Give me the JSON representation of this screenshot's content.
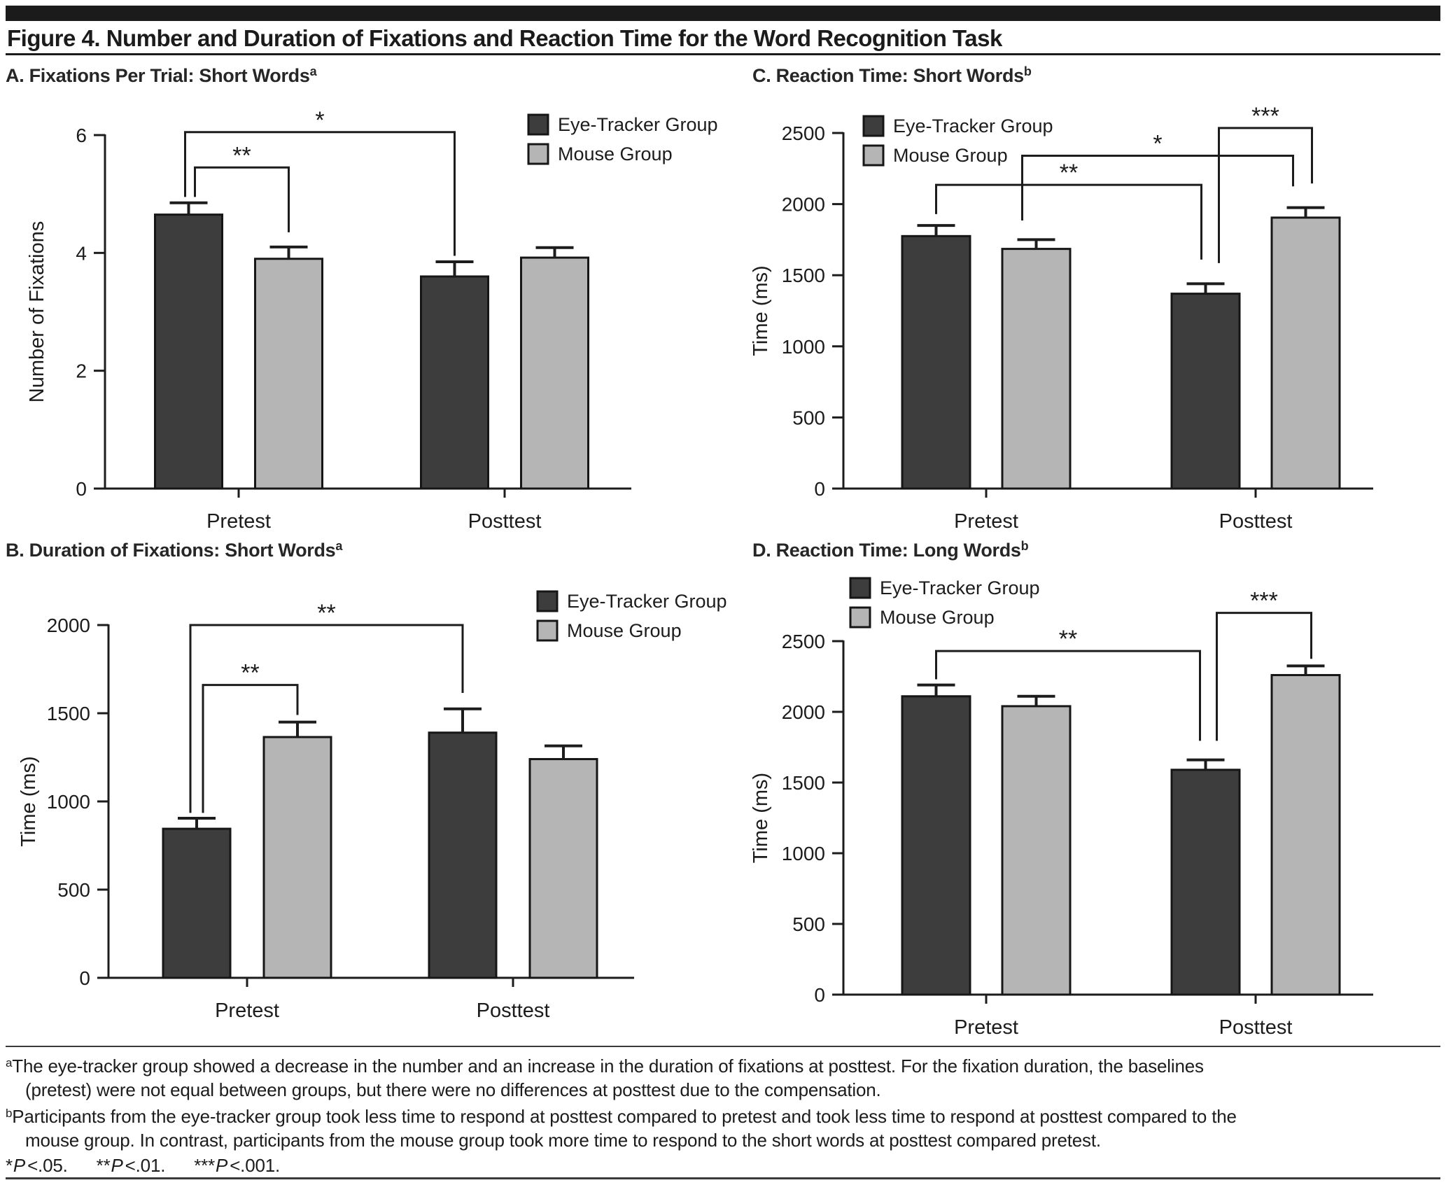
{
  "figure": {
    "title": "Figure 4. Number and Duration of Fixations and Reaction Time for the Word Recognition Task"
  },
  "colors": {
    "eye_tracker": "#3d3d3d",
    "mouse": "#b5b5b5",
    "axis": "#1c1c1c"
  },
  "legend": {
    "eye_tracker_label": "Eye-Tracker Group",
    "mouse_label": "Mouse Group"
  },
  "chart_data": [
    {
      "id": "A",
      "type": "bar",
      "title": "A. Fixations Per Trial: Short Words",
      "title_superscript": "a",
      "categories": [
        "Pretest",
        "Posttest"
      ],
      "series": [
        {
          "name": "Eye-Tracker Group",
          "color": "#3d3d3d",
          "values": [
            4.65,
            3.6
          ],
          "errors": [
            0.2,
            0.25
          ]
        },
        {
          "name": "Mouse Group",
          "color": "#b5b5b5",
          "values": [
            3.9,
            3.92
          ],
          "errors": [
            0.2,
            0.17
          ]
        }
      ],
      "ylabel": "Number of Fixations",
      "ylim": [
        0,
        6
      ],
      "yticks": [
        0,
        2,
        4,
        6
      ],
      "legend_position": "top-right",
      "brackets": [
        {
          "label": "**",
          "from": {
            "cat": 0,
            "series": 0
          },
          "to": {
            "cat": 0,
            "series": 1
          },
          "top": 5.45,
          "dropFrom": 4.95,
          "dropTo": 4.35,
          "dx1": 9,
          "dx2": 0
        },
        {
          "label": "*",
          "from": {
            "cat": 0,
            "series": 0
          },
          "to": {
            "cat": 1,
            "series": 0
          },
          "top": 6.05,
          "dropFrom": 4.95,
          "dropTo": 3.95,
          "dx1": -5,
          "dx2": 0
        }
      ]
    },
    {
      "id": "B",
      "type": "bar",
      "title": "B. Duration of Fixations: Short Words",
      "title_superscript": "a",
      "categories": [
        "Pretest",
        "Posttest"
      ],
      "series": [
        {
          "name": "Eye-Tracker Group",
          "color": "#3d3d3d",
          "values": [
            845,
            1390
          ],
          "errors": [
            60,
            135
          ]
        },
        {
          "name": "Mouse Group",
          "color": "#b5b5b5",
          "values": [
            1365,
            1240
          ],
          "errors": [
            85,
            75
          ]
        }
      ],
      "ylabel": "Time (ms)",
      "ylim": [
        0,
        2000
      ],
      "yticks": [
        0,
        500,
        1000,
        1500,
        2000
      ],
      "legend_position": "top-right",
      "brackets": [
        {
          "label": "**",
          "from": {
            "cat": 0,
            "series": 0
          },
          "to": {
            "cat": 0,
            "series": 1
          },
          "top": 1660,
          "dropFrom": 935,
          "dropTo": 1490,
          "dx1": 9,
          "dx2": 0
        },
        {
          "label": "**",
          "from": {
            "cat": 0,
            "series": 0
          },
          "to": {
            "cat": 1,
            "series": 0
          },
          "top": 2000,
          "dropFrom": 935,
          "dropTo": 1615,
          "dx1": -9,
          "dx2": 0
        }
      ]
    },
    {
      "id": "C",
      "type": "bar",
      "title": "C. Reaction Time: Short Words",
      "title_superscript": "b",
      "categories": [
        "Pretest",
        "Posttest"
      ],
      "series": [
        {
          "name": "Eye-Tracker Group",
          "color": "#3d3d3d",
          "values": [
            1775,
            1370
          ],
          "errors": [
            75,
            70
          ]
        },
        {
          "name": "Mouse Group",
          "color": "#b5b5b5",
          "values": [
            1685,
            1905
          ],
          "errors": [
            65,
            70
          ]
        }
      ],
      "ylabel": "Time (ms)",
      "ylim": [
        0,
        2500
      ],
      "yticks": [
        0,
        500,
        1000,
        1500,
        2000,
        2500
      ],
      "legend_position": "top-left",
      "brackets": [
        {
          "label": "**",
          "from": {
            "cat": 0,
            "series": 0
          },
          "to": {
            "cat": 1,
            "series": 0
          },
          "top": 2135,
          "dropFrom": 1930,
          "dropTo": 1610,
          "dx1": 0,
          "dx2": -6
        },
        {
          "label": "*",
          "from": {
            "cat": 0,
            "series": 1
          },
          "to": {
            "cat": 1,
            "series": 1
          },
          "top": 2340,
          "dropFrom": 1885,
          "dropTo": 2125,
          "dx1": -20,
          "dx2": -18
        },
        {
          "label": "***",
          "from": {
            "cat": 1,
            "series": 0
          },
          "to": {
            "cat": 1,
            "series": 1
          },
          "top": 2535,
          "dropFrom": 1585,
          "dropTo": 2145,
          "dx1": 19,
          "dx2": 9
        }
      ]
    },
    {
      "id": "D",
      "type": "bar",
      "title": "D. Reaction Time: Long Words",
      "title_superscript": "b",
      "categories": [
        "Pretest",
        "Posttest"
      ],
      "series": [
        {
          "name": "Eye-Tracker Group",
          "color": "#3d3d3d",
          "values": [
            2110,
            1590
          ],
          "errors": [
            80,
            70
          ]
        },
        {
          "name": "Mouse Group",
          "color": "#b5b5b5",
          "values": [
            2040,
            2260
          ],
          "errors": [
            70,
            65
          ]
        }
      ],
      "ylabel": "Time (ms)",
      "ylim": [
        0,
        2500
      ],
      "yticks": [
        0,
        500,
        1000,
        1500,
        2000,
        2500
      ],
      "legend_position": "top-left",
      "brackets": [
        {
          "label": "**",
          "from": {
            "cat": 0,
            "series": 0
          },
          "to": {
            "cat": 1,
            "series": 0
          },
          "top": 2430,
          "dropFrom": 2230,
          "dropTo": 1795,
          "dx1": 0,
          "dx2": -8
        },
        {
          "label": "***",
          "from": {
            "cat": 1,
            "series": 0
          },
          "to": {
            "cat": 1,
            "series": 1
          },
          "top": 2700,
          "dropFrom": 1795,
          "dropTo": 2375,
          "dx1": 16,
          "dx2": 8
        }
      ]
    }
  ],
  "footnotes": {
    "a": {
      "sup": "a",
      "line1": "The eye-tracker group showed a decrease in the number and an increase in the duration of fixations at posttest. For the fixation duration, the baselines",
      "line2": "(pretest) were not equal between groups, but there were no differences at posttest due to the compensation."
    },
    "b": {
      "sup": "b",
      "line1": "Participants from the eye-tracker group took less time to respond at posttest compared to pretest and took less time to respond at posttest compared to the",
      "line2": "mouse group. In contrast, participants from the mouse group took more time to respond to the short words at posttest compared pretest."
    },
    "significance": [
      {
        "stars": "*",
        "p": "P",
        "rest": "<.05."
      },
      {
        "stars": "**",
        "p": "P",
        "rest": "<.01."
      },
      {
        "stars": "***",
        "p": "P",
        "rest": "<.001."
      }
    ]
  }
}
